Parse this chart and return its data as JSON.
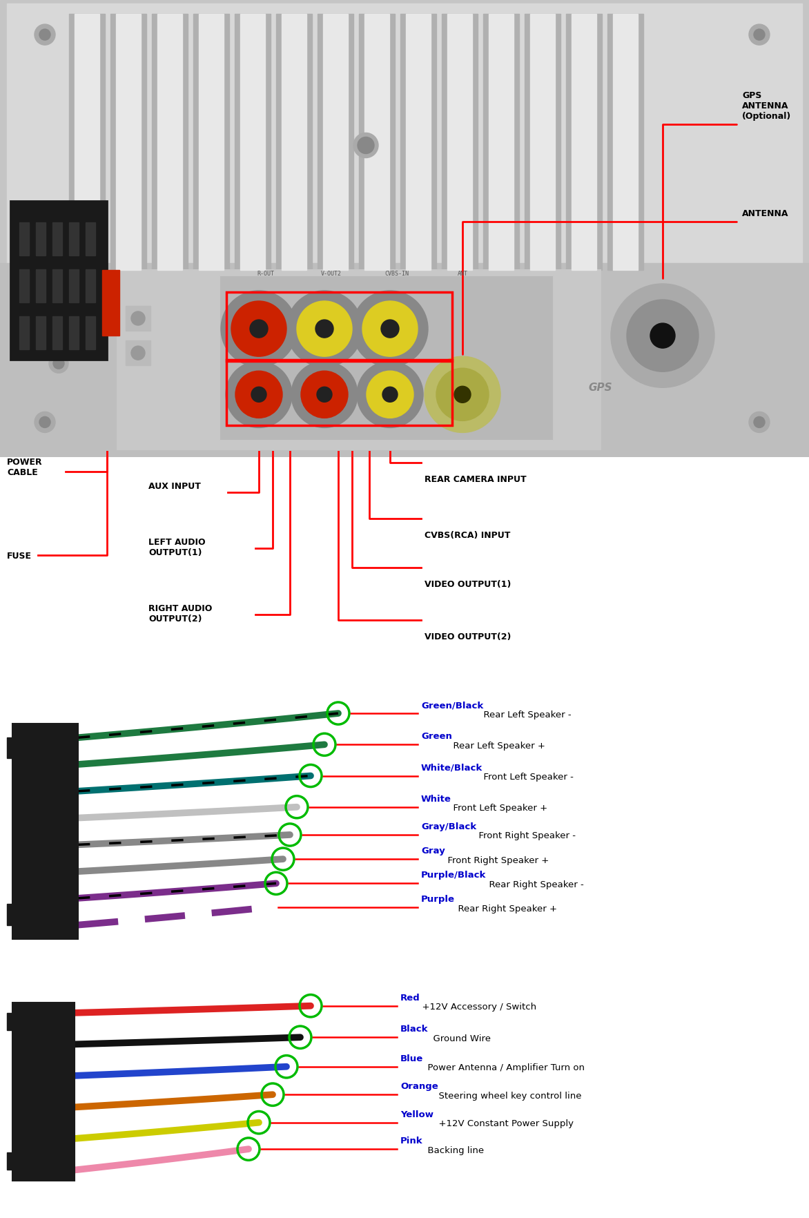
{
  "bg_color": "#ffffff",
  "speaker_wires": [
    {
      "wire_color": "#1e7a40",
      "label_color": "Green/Black",
      "label": "Rear Left Speaker -",
      "has_circle": true,
      "dashed": false
    },
    {
      "wire_color": "#1e7a40",
      "label_color": "Green",
      "label": "Rear Left Speaker +",
      "has_circle": true,
      "dashed": false
    },
    {
      "wire_color": "#007070",
      "label_color": "White/Black",
      "label": "Front Left Speaker -",
      "has_circle": true,
      "dashed": false
    },
    {
      "wire_color": "#bbbbbb",
      "label_color": "White",
      "label": "Front Left Speaker +",
      "has_circle": true,
      "dashed": false
    },
    {
      "wire_color": "#909090",
      "label_color": "Gray/Black",
      "label": "Front Right Speaker -",
      "has_circle": true,
      "dashed": false
    },
    {
      "wire_color": "#909090",
      "label_color": "Gray",
      "label": "Front Right Speaker +",
      "has_circle": true,
      "dashed": false
    },
    {
      "wire_color": "#7b2d8b",
      "label_color": "Purple/Black",
      "label": "Rear Right Speaker -",
      "has_circle": true,
      "dashed": false
    },
    {
      "wire_color": "#7b2d8b",
      "label_color": "Purple",
      "label": "Rear Right Speaker +",
      "has_circle": false,
      "dashed": true
    }
  ],
  "power_wires": [
    {
      "wire_color": "#dd2222",
      "label_color": "Red",
      "label": "+12V Accessory / Switch"
    },
    {
      "wire_color": "#111111",
      "label_color": "Black",
      "label": "Ground Wire"
    },
    {
      "wire_color": "#2244cc",
      "label_color": "Blue",
      "label": "Power Antenna / Amplifier Turn on"
    },
    {
      "wire_color": "#cc6600",
      "label_color": "Orange",
      "label": "Steering wheel key control line"
    },
    {
      "wire_color": "#cccc00",
      "label_color": "Yellow",
      "label": "+12V Constant Power Supply"
    },
    {
      "wire_color": "#ee88aa",
      "label_color": "Pink",
      "label": "Backing line"
    }
  ]
}
